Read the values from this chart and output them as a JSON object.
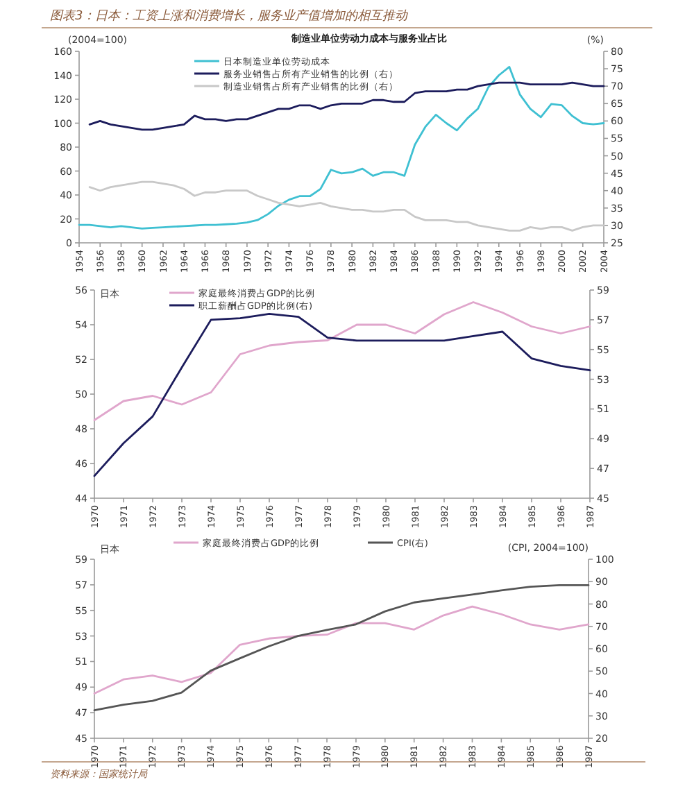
{
  "chart_data": [
    {
      "type": "line",
      "title": "图表3：日本：工资上涨和消费增长，服务业产值增加的相互推动",
      "subtitle": "制造业单位劳动力成本与服务业占比",
      "ylabel": "(2004=100)",
      "y2label": "(%)",
      "xlim": [
        1954,
        2004
      ],
      "xticks": [
        1954,
        1956,
        1958,
        1960,
        1962,
        1964,
        1966,
        1968,
        1970,
        1972,
        1974,
        1976,
        1978,
        1980,
        1982,
        1984,
        1986,
        1988,
        1990,
        1992,
        1994,
        1996,
        1998,
        2000,
        2002,
        2004
      ],
      "ylim": [
        0,
        160
      ],
      "yticks": [
        0,
        20,
        40,
        60,
        80,
        100,
        120,
        140,
        160
      ],
      "y2lim": [
        25,
        80
      ],
      "y2ticks": [
        25,
        30,
        35,
        40,
        45,
        50,
        55,
        60,
        65,
        70,
        75,
        80
      ],
      "legend": "top",
      "grid": false,
      "marker": "none",
      "line_style": "solid",
      "series": [
        {
          "name": "日本制造业单位劳动成本",
          "color": "#3fc0d2",
          "x": [
            1954,
            1955,
            1956,
            1957,
            1958,
            1959,
            1960,
            1961,
            1962,
            1963,
            1964,
            1965,
            1966,
            1967,
            1968,
            1969,
            1970,
            1971,
            1972,
            1973,
            1974,
            1975,
            1976,
            1977,
            1978,
            1979,
            1980,
            1981,
            1982,
            1983,
            1984,
            1985,
            1986,
            1987,
            1988,
            1989,
            1990,
            1991,
            1992,
            1993,
            1994,
            1995,
            1996,
            1997,
            1998,
            1999,
            2000,
            2001,
            2002,
            2003,
            2004
          ],
          "values": [
            15,
            15,
            14,
            13,
            14,
            13,
            12,
            12.5,
            13,
            13.5,
            14,
            14.5,
            15,
            15,
            15.5,
            16,
            17,
            19,
            24,
            31,
            36,
            39,
            39,
            45,
            61,
            58,
            59,
            62,
            56,
            59,
            59,
            56,
            82,
            97,
            107,
            100,
            94,
            104,
            112,
            130,
            140,
            147,
            124,
            112,
            105,
            116,
            115,
            106,
            100,
            99,
            100
          ]
        },
        {
          "name": "服务业销售占所有产业销售的比例（右）",
          "color": "#1c1c5c",
          "axis": "y2",
          "x": [
            1955,
            1956,
            1957,
            1958,
            1959,
            1960,
            1961,
            1962,
            1963,
            1964,
            1965,
            1966,
            1967,
            1968,
            1969,
            1970,
            1971,
            1972,
            1973,
            1974,
            1975,
            1976,
            1977,
            1978,
            1979,
            1980,
            1981,
            1982,
            1983,
            1984,
            1985,
            1986,
            1987,
            1988,
            1989,
            1990,
            1991,
            1992,
            1993,
            1994,
            1995,
            1996,
            1997,
            1998,
            1999,
            2000,
            2001,
            2002,
            2003,
            2004
          ],
          "values": [
            59,
            60,
            59,
            58.5,
            58,
            57.5,
            57.5,
            58,
            58.5,
            59,
            61.5,
            60.5,
            60.5,
            60,
            60.5,
            60.5,
            61.5,
            62.5,
            63.5,
            63.5,
            64.5,
            64.5,
            63.5,
            64.5,
            65,
            65,
            65,
            66,
            66,
            65.5,
            65.5,
            68,
            68.5,
            68.5,
            68.5,
            69,
            69,
            70,
            70.5,
            71,
            71,
            71,
            70.5,
            70.5,
            70.5,
            70.5,
            71,
            70.5,
            70,
            70
          ]
        },
        {
          "name": "制造业销售占所有产业销售的比例（右）",
          "color": "#c8c8c8",
          "axis": "y2",
          "x": [
            1955,
            1956,
            1957,
            1958,
            1959,
            1960,
            1961,
            1962,
            1963,
            1964,
            1965,
            1966,
            1967,
            1968,
            1969,
            1970,
            1971,
            1972,
            1973,
            1974,
            1975,
            1976,
            1977,
            1978,
            1979,
            1980,
            1981,
            1982,
            1983,
            1984,
            1985,
            1986,
            1987,
            1988,
            1989,
            1990,
            1991,
            1992,
            1993,
            1994,
            1995,
            1996,
            1997,
            1998,
            1999,
            2000,
            2001,
            2002,
            2003,
            2004
          ],
          "values": [
            41,
            40,
            41,
            41.5,
            42,
            42.5,
            42.5,
            42,
            41.5,
            40.5,
            38.5,
            39.5,
            39.5,
            40,
            40,
            40,
            38.5,
            37.5,
            36.5,
            36,
            35.5,
            36,
            36.5,
            35.5,
            35,
            34.5,
            34.5,
            34,
            34,
            34.5,
            34.5,
            32.5,
            31.5,
            31.5,
            31.5,
            31,
            31,
            30,
            29.5,
            29,
            28.5,
            28.5,
            29.5,
            29,
            29.5,
            29.5,
            28.5,
            29.5,
            30,
            30
          ]
        }
      ]
    },
    {
      "type": "line",
      "annotations": [
        "日本"
      ],
      "categories": [
        "1970",
        "1971",
        "1972",
        "1973",
        "1974",
        "1975",
        "1976",
        "1977",
        "1978",
        "1979",
        "1980",
        "1981",
        "1982",
        "1983",
        "1984",
        "1985",
        "1986",
        "1987"
      ],
      "ylim": [
        44,
        56
      ],
      "yticks": [
        44,
        46,
        48,
        50,
        52,
        54,
        56
      ],
      "y2lim": [
        45,
        59
      ],
      "y2ticks": [
        45,
        47,
        49,
        51,
        53,
        55,
        57,
        59
      ],
      "legend": "top",
      "grid": false,
      "marker": "none",
      "line_style": "solid",
      "series": [
        {
          "name": "家庭最终消费占GDP的比例",
          "color": "#e0a6cc",
          "values": [
            48.5,
            49.6,
            49.9,
            49.4,
            50.1,
            52.3,
            52.8,
            53.0,
            53.1,
            54.0,
            54.0,
            53.5,
            54.6,
            55.3,
            54.7,
            53.9,
            53.5,
            53.9
          ]
        },
        {
          "name": "职工薪酬占GDP的比例(右)",
          "color": "#1c1c5c",
          "axis": "y2",
          "values": [
            46.5,
            48.7,
            50.5,
            53.8,
            57.0,
            57.1,
            57.4,
            57.2,
            55.8,
            55.6,
            55.6,
            55.6,
            55.6,
            55.9,
            56.2,
            54.4,
            53.9,
            53.6
          ]
        }
      ]
    },
    {
      "type": "line",
      "annotations": [
        "日本",
        "资料来源：国家统计局"
      ],
      "y2label": "(CPI, 2004=100)",
      "categories": [
        "1970",
        "1971",
        "1972",
        "1973",
        "1974",
        "1975",
        "1976",
        "1977",
        "1978",
        "1979",
        "1980",
        "1981",
        "1982",
        "1983",
        "1984",
        "1985",
        "1986",
        "1987"
      ],
      "ylim": [
        45,
        59
      ],
      "yticks": [
        45,
        47,
        49,
        51,
        53,
        55,
        57,
        59
      ],
      "y2lim": [
        20,
        100
      ],
      "y2ticks": [
        20,
        30,
        40,
        50,
        60,
        70,
        80,
        90,
        100
      ],
      "legend": "top",
      "grid": false,
      "marker": "none",
      "line_style": "solid",
      "series": [
        {
          "name": "家庭最终消费占GDP的比例",
          "color": "#e0a6cc",
          "values": [
            48.5,
            49.6,
            49.9,
            49.4,
            50.1,
            52.3,
            52.8,
            53.0,
            53.1,
            54.0,
            54.0,
            53.5,
            54.6,
            55.3,
            54.7,
            53.9,
            53.5,
            53.9
          ]
        },
        {
          "name": "CPI(右)",
          "color": "#555555",
          "axis": "y2",
          "values": [
            32.5,
            35,
            36.7,
            40.4,
            50.2,
            55.7,
            61.1,
            65.7,
            68.4,
            70.9,
            76.7,
            80.7,
            82.5,
            84.2,
            86.1,
            87.7,
            88.4,
            88.4
          ]
        }
      ]
    }
  ]
}
